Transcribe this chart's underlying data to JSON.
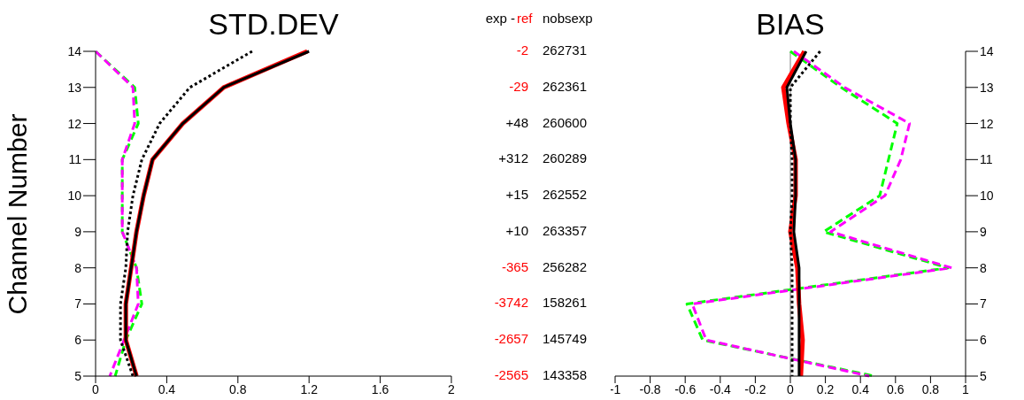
{
  "chart_data": [
    {
      "type": "line",
      "title": "STD.DEV",
      "ylabel": "Channel Number",
      "orientation": "horizontal",
      "categories": [
        "14",
        "13",
        "12",
        "11",
        "10",
        "9",
        "8",
        "7",
        "6",
        "5"
      ],
      "xlim": [
        0,
        2
      ],
      "xticks": [
        0,
        0.4,
        0.8,
        1.2,
        1.6,
        2
      ],
      "grid": false,
      "legend": false,
      "marker": "none",
      "series": [
        {
          "color": "#00ff00",
          "line_style": "dashed",
          "values": [
            0.0,
            0.22,
            0.24,
            0.15,
            0.15,
            0.15,
            0.23,
            0.26,
            0.17,
            0.11
          ]
        },
        {
          "color": "#ff00ff",
          "line_style": "dashed",
          "values": [
            0.0,
            0.21,
            0.22,
            0.15,
            0.15,
            0.15,
            0.23,
            0.24,
            0.16,
            0.08
          ]
        },
        {
          "color": "#ff0000",
          "line_style": "solid",
          "values": [
            1.19,
            0.72,
            0.49,
            0.32,
            0.27,
            0.23,
            0.2,
            0.17,
            0.17,
            0.23
          ]
        },
        {
          "color": "#000000",
          "line_style": "solid",
          "values": [
            1.2,
            0.72,
            0.49,
            0.32,
            0.27,
            0.23,
            0.2,
            0.17,
            0.17,
            0.23
          ]
        },
        {
          "color": "#000000",
          "line_style": "dotted",
          "values": [
            0.88,
            0.53,
            0.36,
            0.26,
            0.21,
            0.18,
            0.17,
            0.14,
            0.14,
            0.21
          ]
        }
      ]
    },
    {
      "type": "other",
      "annotations": [
        "exp -",
        "ref",
        "nobsexp",
        "-2",
        "262731",
        "-29",
        "262361",
        "+48",
        "260600",
        "+312",
        "260289",
        "+15",
        "262552",
        "+10",
        "263357",
        "-365",
        "256282",
        "-3742",
        "158261",
        "-2657",
        "145749",
        "-2565",
        "143358"
      ],
      "colors": [
        "#000000",
        "#ff0000",
        "#000000",
        "#ff0000",
        "#000000",
        "#ff0000",
        "#000000",
        "#000000",
        "#000000",
        "#000000",
        "#000000",
        "#000000",
        "#000000",
        "#000000",
        "#000000",
        "#ff0000",
        "#000000",
        "#ff0000",
        "#000000",
        "#ff0000",
        "#000000",
        "#ff0000",
        "#000000"
      ]
    },
    {
      "type": "line",
      "title": "BIAS",
      "orientation": "horizontal",
      "categories": [
        "14",
        "13",
        "12",
        "11",
        "10",
        "9",
        "8",
        "7",
        "6",
        "5"
      ],
      "xlim": [
        -1,
        1
      ],
      "xticks": [
        -1,
        -0.8,
        -0.6,
        -0.4,
        -0.2,
        0,
        0.2,
        0.4,
        0.6,
        0.8,
        1
      ],
      "grid": false,
      "legend": false,
      "marker": "none",
      "ref_lines": [
        {
          "axis": "x",
          "value": 0,
          "color": "#808080"
        }
      ],
      "series": [
        {
          "axis": "y2",
          "color": "#00ff00",
          "line_style": "dashed",
          "values": [
            0.0,
            0.29,
            0.61,
            0.56,
            0.51,
            0.19,
            0.9,
            -0.59,
            -0.5,
            0.48
          ]
        },
        {
          "axis": "y2",
          "color": "#ff00ff",
          "line_style": "dashed",
          "values": [
            0.02,
            0.31,
            0.68,
            0.63,
            0.54,
            0.23,
            0.92,
            -0.56,
            -0.48,
            0.45
          ]
        },
        {
          "axis": "y2",
          "color": "#ff0000",
          "line_style": "solid",
          "values": [
            0.08,
            -0.04,
            -0.01,
            0.03,
            0.03,
            0.0,
            0.04,
            0.05,
            0.07,
            0.06
          ]
        },
        {
          "axis": "y2",
          "color": "#000000",
          "line_style": "solid",
          "values": [
            0.09,
            -0.02,
            0.0,
            0.03,
            0.03,
            0.02,
            0.05,
            0.05,
            0.05,
            0.05
          ]
        },
        {
          "axis": "y2",
          "color": "#000000",
          "line_style": "dotted",
          "values": [
            0.17,
            0.0,
            0.0,
            0.01,
            0.01,
            0.0,
            0.01,
            0.01,
            0.01,
            0.01
          ]
        }
      ]
    }
  ]
}
